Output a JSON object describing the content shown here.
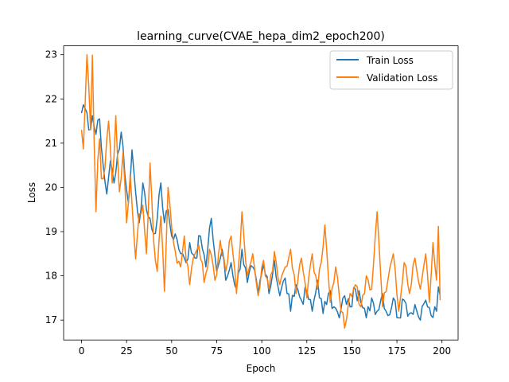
{
  "chart_data": {
    "type": "line",
    "title": "learning_curve(CVAE_hepa_dim2_epoch200)",
    "xlabel": "Epoch",
    "ylabel": "Loss",
    "xlim": [
      -9.95,
      208.95
    ],
    "ylim": [
      16.55,
      23.2
    ],
    "xticks": [
      0,
      25,
      50,
      75,
      100,
      125,
      150,
      175,
      200
    ],
    "yticks": [
      17,
      18,
      19,
      20,
      21,
      22,
      23
    ],
    "legend_position": "top-right",
    "series": [
      {
        "name": "Train Loss",
        "color": "#1f77b4",
        "anchors": [
          [
            0,
            21.68
          ],
          [
            2,
            21.78
          ],
          [
            4,
            21.3
          ],
          [
            6,
            21.62
          ],
          [
            8,
            21.2
          ],
          [
            10,
            21.55
          ],
          [
            12,
            20.5
          ],
          [
            14,
            19.85
          ],
          [
            16,
            20.6
          ],
          [
            18,
            20.1
          ],
          [
            20,
            20.75
          ],
          [
            22,
            21.25
          ],
          [
            24,
            20.3
          ],
          [
            26,
            19.65
          ],
          [
            28,
            20.85
          ],
          [
            30,
            19.9
          ],
          [
            32,
            19.2
          ],
          [
            34,
            20.1
          ],
          [
            36,
            19.5
          ],
          [
            38,
            19.3
          ],
          [
            40,
            18.95
          ],
          [
            42,
            19.3
          ],
          [
            44,
            20.1
          ],
          [
            46,
            19.2
          ],
          [
            48,
            19.5
          ],
          [
            50,
            18.9
          ],
          [
            52,
            18.95
          ],
          [
            55,
            18.5
          ],
          [
            58,
            18.3
          ],
          [
            60,
            18.75
          ],
          [
            63,
            18.4
          ],
          [
            66,
            18.9
          ],
          [
            69,
            18.2
          ],
          [
            72,
            19.3
          ],
          [
            75,
            18.1
          ],
          [
            78,
            18.6
          ],
          [
            80,
            17.9
          ],
          [
            83,
            18.3
          ],
          [
            86,
            17.7
          ],
          [
            89,
            18.6
          ],
          [
            92,
            17.85
          ],
          [
            95,
            18.2
          ],
          [
            98,
            17.6
          ],
          [
            101,
            18.25
          ],
          [
            104,
            17.6
          ],
          [
            107,
            18.35
          ],
          [
            110,
            17.55
          ],
          [
            113,
            17.95
          ],
          [
            116,
            17.2
          ],
          [
            119,
            17.8
          ],
          [
            122,
            17.45
          ],
          [
            125,
            17.65
          ],
          [
            128,
            17.2
          ],
          [
            131,
            17.9
          ],
          [
            134,
            17.15
          ],
          [
            137,
            17.6
          ],
          [
            140,
            17.3
          ],
          [
            143,
            17.05
          ],
          [
            146,
            17.55
          ],
          [
            149,
            17.3
          ],
          [
            152,
            17.7
          ],
          [
            155,
            17.4
          ],
          [
            158,
            17.05
          ],
          [
            161,
            17.5
          ],
          [
            164,
            17.2
          ],
          [
            167,
            17.6
          ],
          [
            170,
            17.1
          ],
          [
            173,
            17.5
          ],
          [
            176,
            17.05
          ],
          [
            179,
            17.45
          ],
          [
            182,
            17.15
          ],
          [
            185,
            17.35
          ],
          [
            188,
            17.0
          ],
          [
            191,
            17.45
          ],
          [
            194,
            17.1
          ],
          [
            197,
            17.2
          ],
          [
            198,
            17.75
          ],
          [
            199,
            17.55
          ]
        ]
      },
      {
        "name": "Validation Loss",
        "color": "#ff7f0e",
        "anchors": [
          [
            0,
            21.3
          ],
          [
            1,
            20.87
          ],
          [
            2,
            21.9
          ],
          [
            3,
            23.0
          ],
          [
            4,
            22.3
          ],
          [
            5,
            21.3
          ],
          [
            6,
            22.99
          ],
          [
            7,
            21.0
          ],
          [
            8,
            19.45
          ],
          [
            9,
            20.6
          ],
          [
            10,
            21.1
          ],
          [
            11,
            20.2
          ],
          [
            13,
            20.45
          ],
          [
            15,
            21.5
          ],
          [
            17,
            20.1
          ],
          [
            19,
            21.62
          ],
          [
            21,
            19.9
          ],
          [
            23,
            20.8
          ],
          [
            25,
            19.2
          ],
          [
            27,
            20.3
          ],
          [
            29,
            18.95
          ],
          [
            30,
            18.38
          ],
          [
            32,
            19.4
          ],
          [
            34,
            19.6
          ],
          [
            36,
            18.5
          ],
          [
            38,
            20.55
          ],
          [
            40,
            18.8
          ],
          [
            42,
            18.1
          ],
          [
            44,
            19.35
          ],
          [
            46,
            17.65
          ],
          [
            48,
            20.0
          ],
          [
            50,
            19.1
          ],
          [
            52,
            18.55
          ],
          [
            55,
            18.2
          ],
          [
            57,
            18.9
          ],
          [
            60,
            17.8
          ],
          [
            62,
            18.4
          ],
          [
            65,
            18.7
          ],
          [
            68,
            17.85
          ],
          [
            71,
            18.6
          ],
          [
            74,
            17.9
          ],
          [
            77,
            18.8
          ],
          [
            80,
            18.1
          ],
          [
            83,
            18.9
          ],
          [
            86,
            17.6
          ],
          [
            89,
            19.45
          ],
          [
            92,
            18.0
          ],
          [
            95,
            18.5
          ],
          [
            98,
            17.55
          ],
          [
            101,
            18.35
          ],
          [
            104,
            17.7
          ],
          [
            107,
            18.55
          ],
          [
            110,
            17.8
          ],
          [
            113,
            18.2
          ],
          [
            116,
            18.6
          ],
          [
            119,
            17.6
          ],
          [
            122,
            18.4
          ],
          [
            125,
            17.5
          ],
          [
            128,
            18.5
          ],
          [
            131,
            17.7
          ],
          [
            133,
            18.3
          ],
          [
            135,
            19.15
          ],
          [
            138,
            17.4
          ],
          [
            141,
            18.2
          ],
          [
            144,
            17.2
          ],
          [
            146,
            16.82
          ],
          [
            149,
            17.6
          ],
          [
            152,
            17.8
          ],
          [
            155,
            17.3
          ],
          [
            158,
            18.0
          ],
          [
            161,
            17.7
          ],
          [
            164,
            19.45
          ],
          [
            167,
            17.3
          ],
          [
            170,
            17.9
          ],
          [
            173,
            18.5
          ],
          [
            176,
            17.2
          ],
          [
            179,
            18.3
          ],
          [
            182,
            17.6
          ],
          [
            185,
            18.4
          ],
          [
            188,
            17.7
          ],
          [
            191,
            18.5
          ],
          [
            193,
            17.4
          ],
          [
            195,
            18.75
          ],
          [
            197,
            17.9
          ],
          [
            198,
            19.12
          ],
          [
            199,
            17.45
          ]
        ]
      }
    ]
  }
}
